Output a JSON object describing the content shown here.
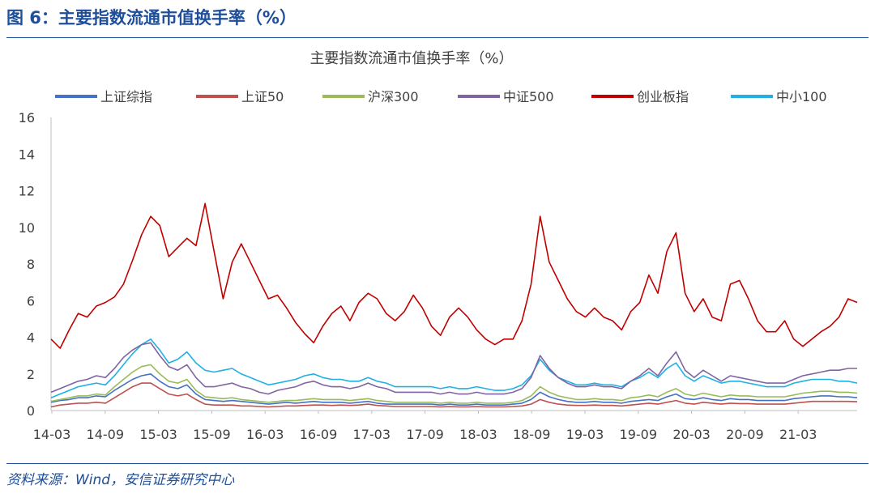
{
  "figure": {
    "title": "图 6：主要指数流通市值换手率（%）",
    "source": "资料来源：Wind，安信证券研究中心"
  },
  "chart_data": {
    "type": "line",
    "title": "主要指数流通市值换手率（%）",
    "xlabel": "",
    "ylabel": "",
    "ylim": [
      0,
      16
    ],
    "yticks": [
      0,
      2,
      4,
      6,
      8,
      10,
      12,
      14,
      16
    ],
    "xticks": [
      "14-03",
      "14-09",
      "15-03",
      "15-09",
      "16-03",
      "16-09",
      "17-03",
      "17-09",
      "18-03",
      "18-09",
      "19-03",
      "19-09",
      "20-03",
      "20-09",
      "21-03"
    ],
    "grid": false,
    "legend_position": "top",
    "series": [
      {
        "name": "上证综指",
        "color": "#4472c4",
        "values": [
          0.45,
          0.55,
          0.6,
          0.7,
          0.7,
          0.8,
          0.75,
          1.1,
          1.4,
          1.7,
          1.9,
          2.0,
          1.6,
          1.3,
          1.2,
          1.4,
          0.9,
          0.6,
          0.55,
          0.5,
          0.55,
          0.5,
          0.45,
          0.4,
          0.35,
          0.4,
          0.45,
          0.4,
          0.45,
          0.5,
          0.45,
          0.45,
          0.45,
          0.4,
          0.45,
          0.5,
          0.4,
          0.35,
          0.35,
          0.35,
          0.35,
          0.35,
          0.35,
          0.3,
          0.35,
          0.3,
          0.3,
          0.35,
          0.3,
          0.3,
          0.3,
          0.35,
          0.4,
          0.6,
          1.0,
          0.75,
          0.6,
          0.5,
          0.45,
          0.45,
          0.5,
          0.45,
          0.45,
          0.4,
          0.5,
          0.55,
          0.6,
          0.55,
          0.75,
          0.9,
          0.65,
          0.6,
          0.7,
          0.6,
          0.55,
          0.65,
          0.6,
          0.6,
          0.55,
          0.55,
          0.55,
          0.55,
          0.65,
          0.7,
          0.75,
          0.8,
          0.8,
          0.75,
          0.75,
          0.7
        ]
      },
      {
        "name": "上证50",
        "color": "#c0504d",
        "values": [
          0.2,
          0.3,
          0.35,
          0.4,
          0.4,
          0.45,
          0.4,
          0.7,
          1.0,
          1.3,
          1.5,
          1.5,
          1.2,
          0.9,
          0.8,
          0.9,
          0.6,
          0.35,
          0.3,
          0.3,
          0.3,
          0.25,
          0.25,
          0.22,
          0.2,
          0.22,
          0.25,
          0.25,
          0.28,
          0.3,
          0.3,
          0.28,
          0.3,
          0.28,
          0.3,
          0.35,
          0.28,
          0.25,
          0.22,
          0.22,
          0.22,
          0.22,
          0.22,
          0.2,
          0.22,
          0.2,
          0.2,
          0.22,
          0.2,
          0.2,
          0.2,
          0.22,
          0.25,
          0.35,
          0.6,
          0.45,
          0.35,
          0.3,
          0.28,
          0.28,
          0.3,
          0.28,
          0.28,
          0.25,
          0.3,
          0.35,
          0.4,
          0.35,
          0.45,
          0.55,
          0.4,
          0.35,
          0.45,
          0.4,
          0.35,
          0.4,
          0.38,
          0.38,
          0.35,
          0.35,
          0.35,
          0.35,
          0.4,
          0.45,
          0.5,
          0.5,
          0.5,
          0.5,
          0.5,
          0.48
        ]
      },
      {
        "name": "沪深300",
        "color": "#9bbb59",
        "values": [
          0.5,
          0.6,
          0.7,
          0.8,
          0.8,
          0.9,
          0.85,
          1.3,
          1.7,
          2.1,
          2.4,
          2.5,
          2.0,
          1.6,
          1.5,
          1.7,
          1.1,
          0.75,
          0.7,
          0.65,
          0.7,
          0.6,
          0.55,
          0.5,
          0.45,
          0.5,
          0.55,
          0.55,
          0.6,
          0.65,
          0.6,
          0.6,
          0.6,
          0.55,
          0.6,
          0.65,
          0.55,
          0.5,
          0.45,
          0.45,
          0.45,
          0.45,
          0.45,
          0.4,
          0.45,
          0.4,
          0.4,
          0.45,
          0.4,
          0.4,
          0.4,
          0.45,
          0.55,
          0.8,
          1.3,
          1.0,
          0.8,
          0.7,
          0.6,
          0.6,
          0.65,
          0.6,
          0.6,
          0.55,
          0.7,
          0.75,
          0.85,
          0.75,
          1.0,
          1.2,
          0.9,
          0.8,
          0.95,
          0.85,
          0.75,
          0.85,
          0.8,
          0.8,
          0.75,
          0.75,
          0.75,
          0.75,
          0.85,
          0.95,
          1.0,
          1.05,
          1.05,
          1.0,
          1.0,
          0.95
        ]
      },
      {
        "name": "中证500",
        "color": "#8064a2",
        "values": [
          1.0,
          1.2,
          1.4,
          1.6,
          1.7,
          1.9,
          1.8,
          2.3,
          2.9,
          3.3,
          3.6,
          3.7,
          3.0,
          2.4,
          2.2,
          2.5,
          1.8,
          1.3,
          1.3,
          1.4,
          1.5,
          1.3,
          1.2,
          1.0,
          0.9,
          1.1,
          1.2,
          1.3,
          1.5,
          1.6,
          1.4,
          1.3,
          1.3,
          1.2,
          1.3,
          1.5,
          1.3,
          1.2,
          1.0,
          1.0,
          1.0,
          1.0,
          1.0,
          0.9,
          1.0,
          0.9,
          0.9,
          1.0,
          0.9,
          0.9,
          0.9,
          1.0,
          1.2,
          1.8,
          3.0,
          2.3,
          1.8,
          1.5,
          1.3,
          1.3,
          1.4,
          1.3,
          1.3,
          1.2,
          1.6,
          1.9,
          2.3,
          1.9,
          2.6,
          3.2,
          2.2,
          1.8,
          2.2,
          1.9,
          1.6,
          1.9,
          1.8,
          1.7,
          1.6,
          1.5,
          1.5,
          1.5,
          1.7,
          1.9,
          2.0,
          2.1,
          2.2,
          2.2,
          2.3,
          2.3
        ]
      },
      {
        "name": "创业板指",
        "color": "#c00000",
        "values": [
          3.9,
          3.4,
          4.4,
          5.3,
          5.1,
          5.7,
          5.9,
          6.2,
          6.9,
          8.2,
          9.6,
          10.6,
          10.1,
          8.4,
          8.9,
          9.4,
          9.0,
          11.3,
          8.7,
          6.1,
          8.1,
          9.1,
          8.1,
          7.1,
          6.1,
          6.3,
          5.6,
          4.8,
          4.2,
          3.7,
          4.6,
          5.3,
          5.7,
          4.9,
          5.9,
          6.4,
          6.1,
          5.3,
          4.9,
          5.4,
          6.3,
          5.6,
          4.6,
          4.1,
          5.1,
          5.6,
          5.1,
          4.4,
          3.9,
          3.6,
          3.9,
          3.9,
          4.9,
          6.9,
          10.6,
          8.1,
          7.1,
          6.1,
          5.4,
          5.1,
          5.6,
          5.1,
          4.9,
          4.4,
          5.4,
          5.9,
          7.4,
          6.4,
          8.7,
          9.7,
          6.4,
          5.4,
          6.1,
          5.1,
          4.9,
          6.9,
          7.1,
          6.1,
          4.9,
          4.3,
          4.3,
          4.9,
          3.9,
          3.5,
          3.9,
          4.3,
          4.6,
          5.1,
          6.1,
          5.9
        ]
      },
      {
        "name": "中小100",
        "color": "#1fb1e6",
        "values": [
          0.7,
          0.9,
          1.1,
          1.3,
          1.4,
          1.5,
          1.4,
          1.9,
          2.5,
          3.1,
          3.6,
          3.9,
          3.3,
          2.6,
          2.8,
          3.2,
          2.6,
          2.2,
          2.1,
          2.2,
          2.3,
          2.0,
          1.8,
          1.6,
          1.4,
          1.5,
          1.6,
          1.7,
          1.9,
          2.0,
          1.8,
          1.7,
          1.7,
          1.6,
          1.6,
          1.8,
          1.6,
          1.5,
          1.3,
          1.3,
          1.3,
          1.3,
          1.3,
          1.2,
          1.3,
          1.2,
          1.2,
          1.3,
          1.2,
          1.1,
          1.1,
          1.2,
          1.4,
          1.9,
          2.8,
          2.2,
          1.8,
          1.6,
          1.4,
          1.4,
          1.5,
          1.4,
          1.4,
          1.3,
          1.6,
          1.8,
          2.1,
          1.8,
          2.3,
          2.6,
          1.9,
          1.6,
          1.9,
          1.7,
          1.5,
          1.6,
          1.6,
          1.5,
          1.4,
          1.3,
          1.3,
          1.3,
          1.5,
          1.6,
          1.7,
          1.7,
          1.7,
          1.6,
          1.6,
          1.5
        ]
      }
    ]
  }
}
